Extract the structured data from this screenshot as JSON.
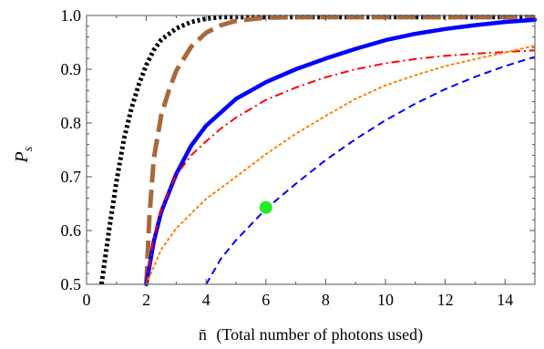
{
  "chart_data": {
    "type": "line",
    "xlabel": {
      "symbol": "n̄",
      "text": "(Total number of photons used)"
    },
    "ylabel": {
      "main": "P",
      "sub": "s"
    },
    "xlim": [
      0,
      15
    ],
    "ylim": [
      0.5,
      1.0
    ],
    "x_ticks": [
      0,
      2,
      4,
      6,
      8,
      10,
      12,
      14
    ],
    "y_ticks": [
      0.5,
      0.6,
      0.7,
      0.8,
      0.9,
      1.0
    ],
    "x_tick_labels": [
      "0",
      "2",
      "4",
      "6",
      "8",
      "10",
      "12",
      "14"
    ],
    "y_tick_labels": [
      "0.5",
      "0.6",
      "0.7",
      "0.8",
      "0.9",
      "1.0"
    ],
    "grid": false,
    "series": [
      {
        "color": "#000000",
        "style": "dotted-thick",
        "x": [
          0.5,
          0.75,
          1.0,
          1.25,
          1.5,
          1.75,
          2.0,
          2.25,
          2.5,
          3.0,
          3.5,
          4.0,
          4.5,
          5.0,
          6.0,
          7.0,
          8.0,
          10.0,
          12.0,
          15.0
        ],
        "y": [
          0.5,
          0.6,
          0.691,
          0.77,
          0.827,
          0.872,
          0.908,
          0.936,
          0.955,
          0.976,
          0.988,
          0.994,
          0.997,
          0.999,
          1.0,
          1.0,
          1.0,
          1.0,
          1.0,
          1.0
        ]
      },
      {
        "color": "#a8693a",
        "style": "long-dash-thick",
        "x": [
          2.0,
          2.1,
          2.25,
          2.5,
          2.75,
          3.0,
          3.5,
          4.0,
          4.5,
          5.0,
          6.0,
          7.0,
          8.0,
          10.0,
          12.0,
          15.0
        ],
        "y": [
          0.5,
          0.624,
          0.734,
          0.815,
          0.86,
          0.897,
          0.942,
          0.968,
          0.982,
          0.99,
          0.996,
          0.998,
          0.999,
          1.0,
          1.0,
          1.0
        ]
      },
      {
        "color": "#0000ff",
        "style": "solid-thick",
        "x": [
          2.0,
          2.25,
          2.5,
          3.0,
          3.5,
          4.0,
          5.0,
          6.0,
          7.0,
          8.0,
          9.0,
          10.0,
          11.0,
          12.0,
          13.0,
          14.0,
          15.0
        ],
        "y": [
          0.5,
          0.58,
          0.635,
          0.705,
          0.758,
          0.795,
          0.845,
          0.876,
          0.9,
          0.92,
          0.938,
          0.954,
          0.966,
          0.975,
          0.982,
          0.988,
          0.992
        ]
      },
      {
        "color": "#ff0000",
        "style": "dash-dot",
        "x": [
          2.0,
          2.25,
          2.5,
          3.0,
          3.5,
          4.0,
          4.5,
          5.0,
          6.0,
          7.0,
          8.0,
          9.0,
          10.0,
          11.0,
          12.0,
          13.0,
          14.0,
          15.0
        ],
        "y": [
          0.5,
          0.587,
          0.641,
          0.703,
          0.74,
          0.766,
          0.79,
          0.81,
          0.843,
          0.866,
          0.885,
          0.9,
          0.911,
          0.919,
          0.925,
          0.929,
          0.932,
          0.935
        ]
      },
      {
        "color": "#ff8000",
        "style": "dotted",
        "x": [
          2.0,
          2.5,
          3.0,
          4.0,
          5.0,
          6.0,
          7.0,
          8.0,
          9.0,
          10.0,
          11.0,
          12.0,
          13.0,
          14.0,
          15.0
        ],
        "y": [
          0.5,
          0.565,
          0.604,
          0.659,
          0.7,
          0.742,
          0.78,
          0.813,
          0.845,
          0.87,
          0.889,
          0.906,
          0.919,
          0.931,
          0.944
        ]
      },
      {
        "color": "#0000ff",
        "style": "dashed",
        "x": [
          4.0,
          4.5,
          5.0,
          6.0,
          7.0,
          8.0,
          9.0,
          10.0,
          11.0,
          12.0,
          13.0,
          14.0,
          15.0
        ],
        "y": [
          0.5,
          0.548,
          0.582,
          0.64,
          0.687,
          0.731,
          0.77,
          0.805,
          0.836,
          0.863,
          0.886,
          0.906,
          0.923
        ]
      }
    ],
    "points": [
      {
        "x": 6.0,
        "y": 0.643,
        "color": "#22ee22"
      }
    ]
  }
}
